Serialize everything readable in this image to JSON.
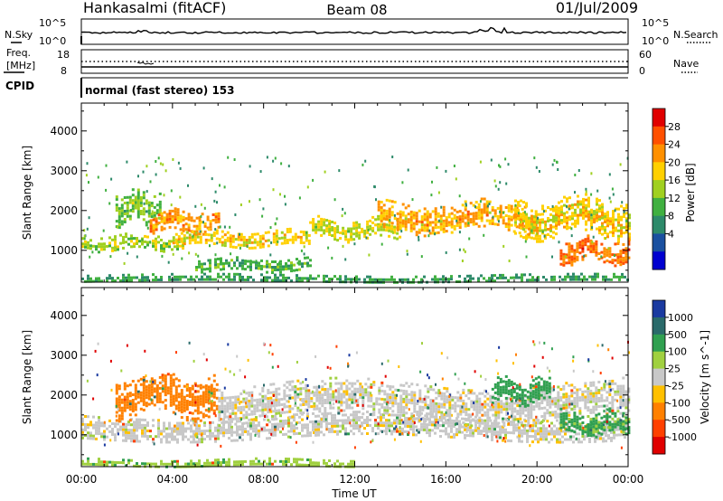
{
  "header": {
    "station": "Hankasalmi (fitACF)",
    "beam": "Beam 08",
    "date": "01/Jul/2009"
  },
  "noise_panel": {
    "left_label": "N.Sky",
    "right_label": "N.Search",
    "left_ticks": [
      "10^5",
      "10^0"
    ],
    "right_ticks": [
      "10^5",
      "10^0"
    ]
  },
  "freq_panel": {
    "left_label_1": "Freq.",
    "left_label_2": "[MHz]",
    "right_label": "Nave",
    "left_ticks": [
      "18",
      "8"
    ],
    "right_ticks": [
      "60",
      "0"
    ]
  },
  "cpid": {
    "label": "CPID",
    "mode_text": "normal (fast stereo) 153"
  },
  "chart_data": [
    {
      "type": "heatmap",
      "name": "power",
      "ylabel": "Slant Range [km]",
      "xlabel": "Time UT",
      "x_ticks": [
        "00:00",
        "04:00",
        "08:00",
        "12:00",
        "16:00",
        "20:00",
        "00:00"
      ],
      "x_range_hours": [
        0,
        24
      ],
      "y_ticks": [
        1000,
        2000,
        3000,
        4000
      ],
      "ylim": [
        200,
        4700
      ],
      "colorbar": {
        "label": "Power [dB]",
        "ticks": [
          "28",
          "24",
          "20",
          "16",
          "12",
          "8",
          "4"
        ],
        "colors": [
          "#e00000",
          "#ff5000",
          "#ff9000",
          "#ffd000",
          "#a0d020",
          "#40b040",
          "#2d8a6a",
          "#1a50a0",
          "#0000d0"
        ]
      },
      "echo_bands": [
        {
          "t_start": 0.0,
          "t_end": 4.5,
          "range_low": 1000,
          "range_high": 1400,
          "power_db": 14
        },
        {
          "t_start": 1.5,
          "t_end": 3.5,
          "range_low": 1700,
          "range_high": 2500,
          "power_db": 12
        },
        {
          "t_start": 3.0,
          "t_end": 6.0,
          "range_low": 1500,
          "range_high": 2000,
          "power_db": 22
        },
        {
          "t_start": 4.0,
          "t_end": 10.0,
          "range_low": 1100,
          "range_high": 1500,
          "power_db": 18
        },
        {
          "t_start": 10.0,
          "t_end": 14.0,
          "range_low": 1300,
          "range_high": 1800,
          "power_db": 16
        },
        {
          "t_start": 13.0,
          "t_end": 20.0,
          "range_low": 1500,
          "range_high": 2200,
          "power_db": 20
        },
        {
          "t_start": 19.0,
          "t_end": 24.0,
          "range_low": 1400,
          "range_high": 2300,
          "power_db": 18
        },
        {
          "t_start": 21.0,
          "t_end": 24.0,
          "range_low": 700,
          "range_high": 1300,
          "power_db": 24
        },
        {
          "t_start": 5.0,
          "t_end": 10.0,
          "range_low": 500,
          "range_high": 800,
          "power_db": 10
        },
        {
          "t_start": 0.0,
          "t_end": 24.0,
          "range_low": 200,
          "range_high": 400,
          "power_db": 8
        }
      ]
    },
    {
      "type": "heatmap",
      "name": "velocity",
      "ylabel": "Slant Range [km]",
      "xlabel": "Time UT",
      "x_ticks": [
        "00:00",
        "04:00",
        "08:00",
        "12:00",
        "16:00",
        "20:00",
        "00:00"
      ],
      "x_range_hours": [
        0,
        24
      ],
      "y_ticks": [
        1000,
        2000,
        3000,
        4000
      ],
      "ylim": [
        200,
        4700
      ],
      "colorbar": {
        "label": "Velocity [m s^-1]",
        "ticks": [
          "1000",
          "500",
          "100",
          "25",
          "-25",
          "-100",
          "-500",
          "-1000"
        ],
        "colors": [
          "#1a3aa0",
          "#2a6a6a",
          "#30a050",
          "#a0d040",
          "#c8c8c8",
          "#ffc000",
          "#ff8000",
          "#ff4000",
          "#e00000"
        ]
      },
      "echo_bands": [
        {
          "t_start": 0.0,
          "t_end": 24.0,
          "range_low": 900,
          "range_high": 1500,
          "velocity": 0
        },
        {
          "t_start": 1.5,
          "t_end": 6.0,
          "range_low": 1500,
          "range_high": 2500,
          "velocity": -300
        },
        {
          "t_start": 6.0,
          "t_end": 24.0,
          "range_low": 1400,
          "range_high": 2300,
          "velocity": 0
        },
        {
          "t_start": 18.0,
          "t_end": 20.5,
          "range_low": 1800,
          "range_high": 2400,
          "velocity": 150
        },
        {
          "t_start": 21.0,
          "t_end": 24.0,
          "range_low": 1000,
          "range_high": 1600,
          "velocity": 120
        },
        {
          "t_start": 0.0,
          "t_end": 12.0,
          "range_low": 200,
          "range_high": 400,
          "velocity": 80
        }
      ]
    }
  ]
}
